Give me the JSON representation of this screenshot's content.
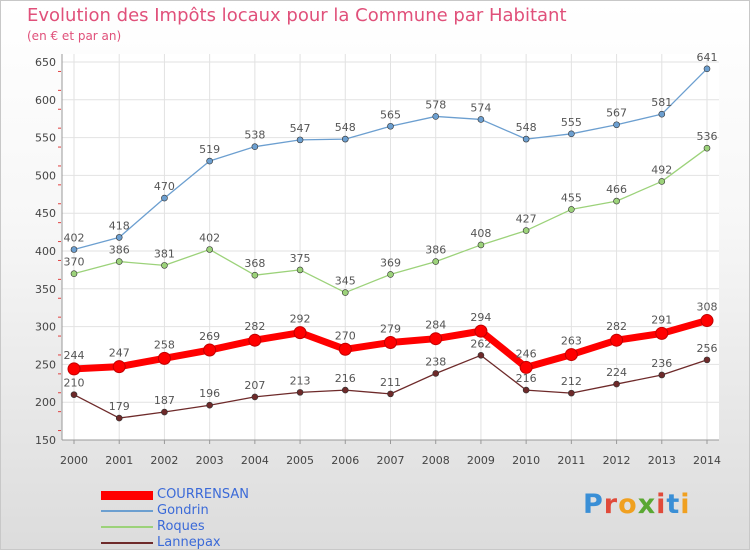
{
  "title": "Evolution des Impôts locaux pour la Commune par Habitant",
  "subtitle": "(en € et par an)",
  "brand": "Proxiti",
  "chart_data": {
    "type": "line",
    "x": [
      "2000",
      "2001",
      "2002",
      "2003",
      "2004",
      "2005",
      "2006",
      "2007",
      "2008",
      "2009",
      "2010",
      "2011",
      "2012",
      "2013",
      "2014"
    ],
    "ylim": [
      150,
      650
    ],
    "yticks": [
      150,
      200,
      250,
      300,
      350,
      400,
      450,
      500,
      550,
      600,
      650
    ],
    "grid": true,
    "legend": "bottom-left",
    "series": [
      {
        "name": "COURRENSAN",
        "color": "#ff0000",
        "highlight": true,
        "values": [
          244,
          247,
          258,
          269,
          282,
          292,
          270,
          279,
          284,
          294,
          246,
          263,
          282,
          291,
          308
        ]
      },
      {
        "name": "Gondrin",
        "color": "#6c9fd0",
        "values": [
          402,
          418,
          470,
          519,
          538,
          547,
          548,
          565,
          578,
          574,
          548,
          555,
          567,
          581,
          641
        ]
      },
      {
        "name": "Roques",
        "color": "#9cd27a",
        "values": [
          370,
          386,
          381,
          402,
          368,
          375,
          345,
          369,
          386,
          408,
          427,
          455,
          466,
          492,
          536
        ]
      },
      {
        "name": "Lannepax",
        "color": "#6e2a2a",
        "values": [
          210,
          179,
          187,
          196,
          207,
          213,
          216,
          211,
          238,
          262,
          216,
          212,
          224,
          236,
          256
        ]
      }
    ]
  }
}
